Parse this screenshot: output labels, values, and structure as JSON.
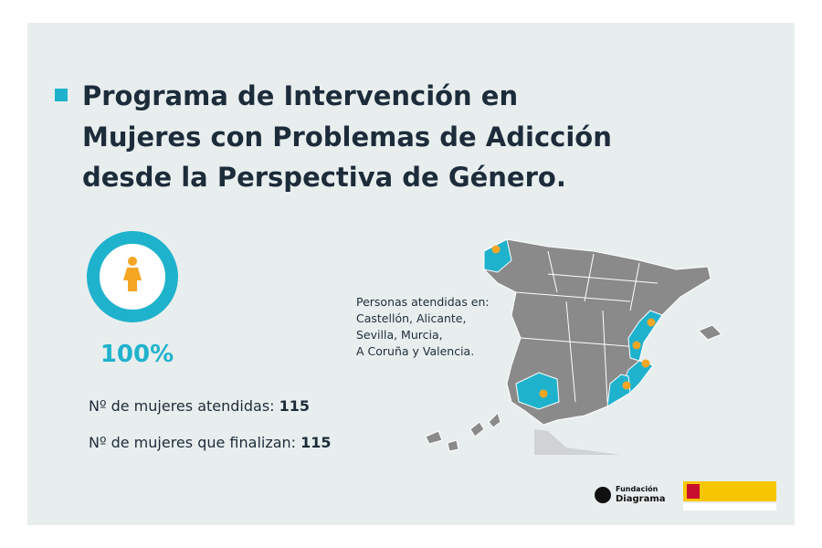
{
  "header": {
    "title_lines": [
      "Programa de Intervención en",
      "Mujeres con Problemas de Adicción",
      "desde la Perspectiva de Género."
    ]
  },
  "indicator": {
    "percent_label": "100%"
  },
  "stats": [
    {
      "label": "Nº de mujeres atendidas:",
      "value": "115"
    },
    {
      "label": "Nº de mujeres que finalizan:",
      "value": "115"
    }
  ],
  "map": {
    "caption_lines": [
      "Personas atendidas en:",
      "Castellón, Alicante,",
      "Sevilla, Murcia,",
      "A Coruña y Valencia."
    ]
  },
  "logos": {
    "foundation_lines": [
      "Fundación",
      "Diagrama"
    ]
  }
}
